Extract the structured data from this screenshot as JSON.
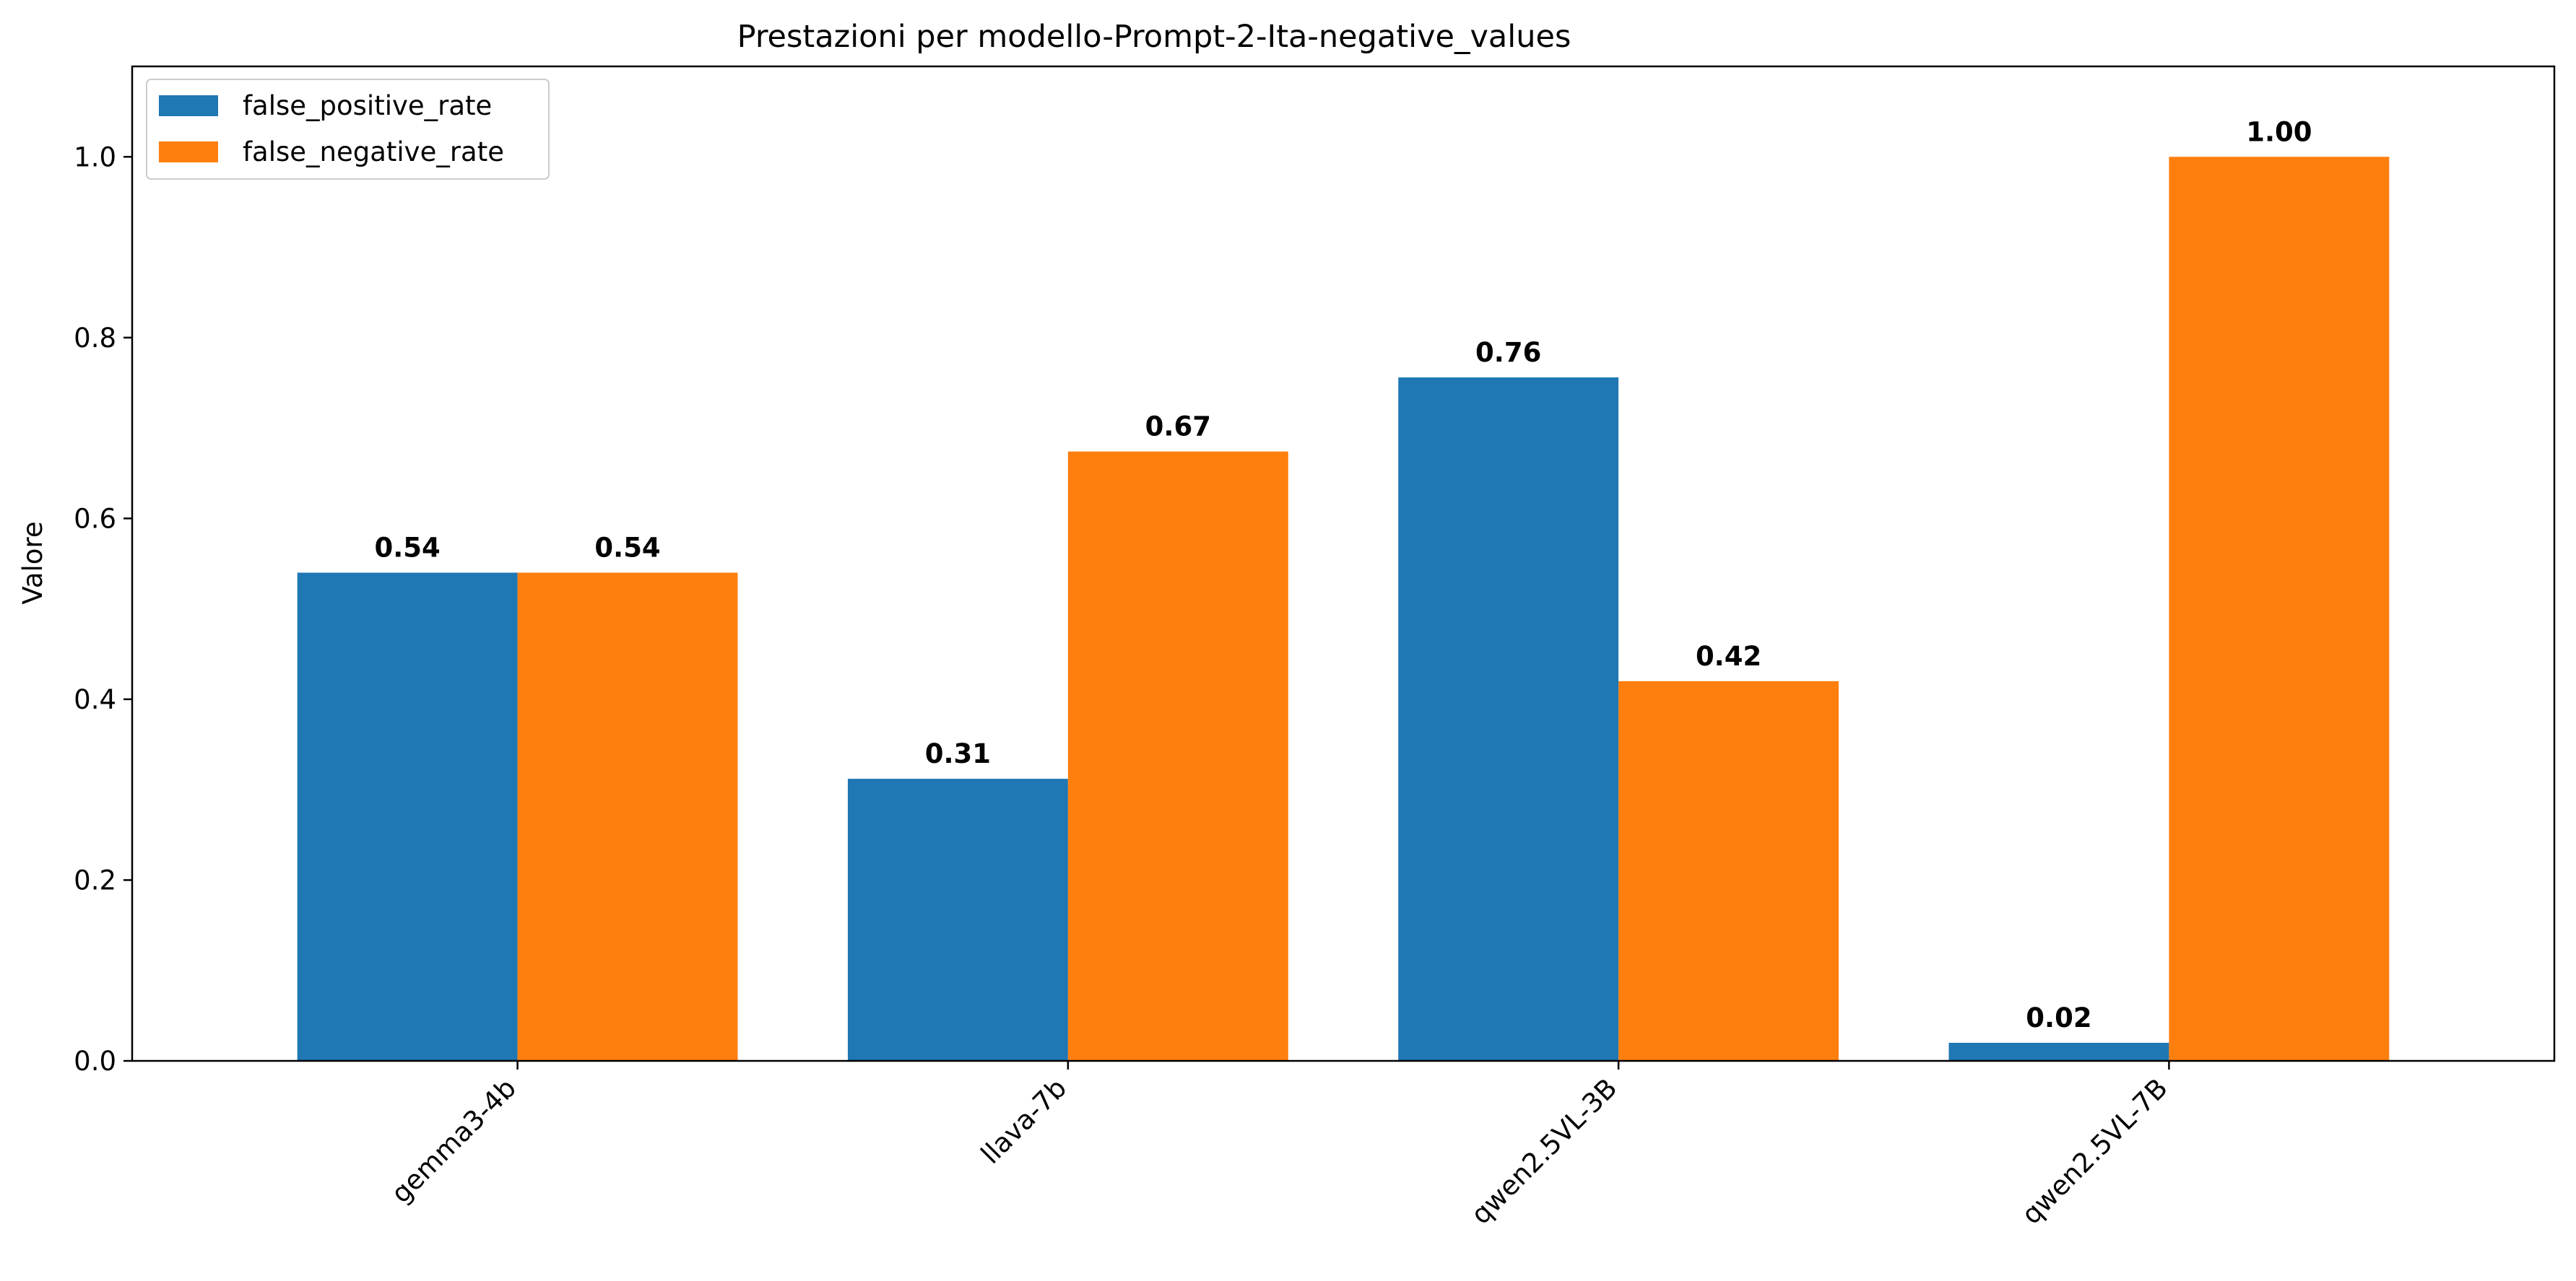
{
  "chart_data": {
    "type": "bar",
    "title": "Prestazioni per modello-Prompt-2-Ita-negative_values",
    "xlabel": "",
    "ylabel": "Valore",
    "categories": [
      "gemma3-4b",
      "llava-7b",
      "qwen2.5VL-3B",
      "qwen2.5VL-7B"
    ],
    "series": [
      {
        "name": "false_positive_rate",
        "color": "#1f77b4",
        "values": [
          0.54,
          0.312,
          0.756,
          0.02
        ],
        "labels": [
          "0.54",
          "0.31",
          "0.76",
          "0.02"
        ]
      },
      {
        "name": "false_negative_rate",
        "color": "#ff7f0e",
        "values": [
          0.54,
          0.674,
          0.42,
          1.0
        ],
        "labels": [
          "0.54",
          "0.67",
          "0.42",
          "1.00"
        ]
      }
    ],
    "ylim": [
      0,
      1.1
    ],
    "yticks": [
      "0.0",
      "0.2",
      "0.4",
      "0.6",
      "0.8",
      "1.0"
    ],
    "ytick_values": [
      0,
      0.2,
      0.4,
      0.6,
      0.8,
      1.0
    ],
    "grid": false,
    "legend_position": "top-left",
    "xtick_rotation": -45
  }
}
